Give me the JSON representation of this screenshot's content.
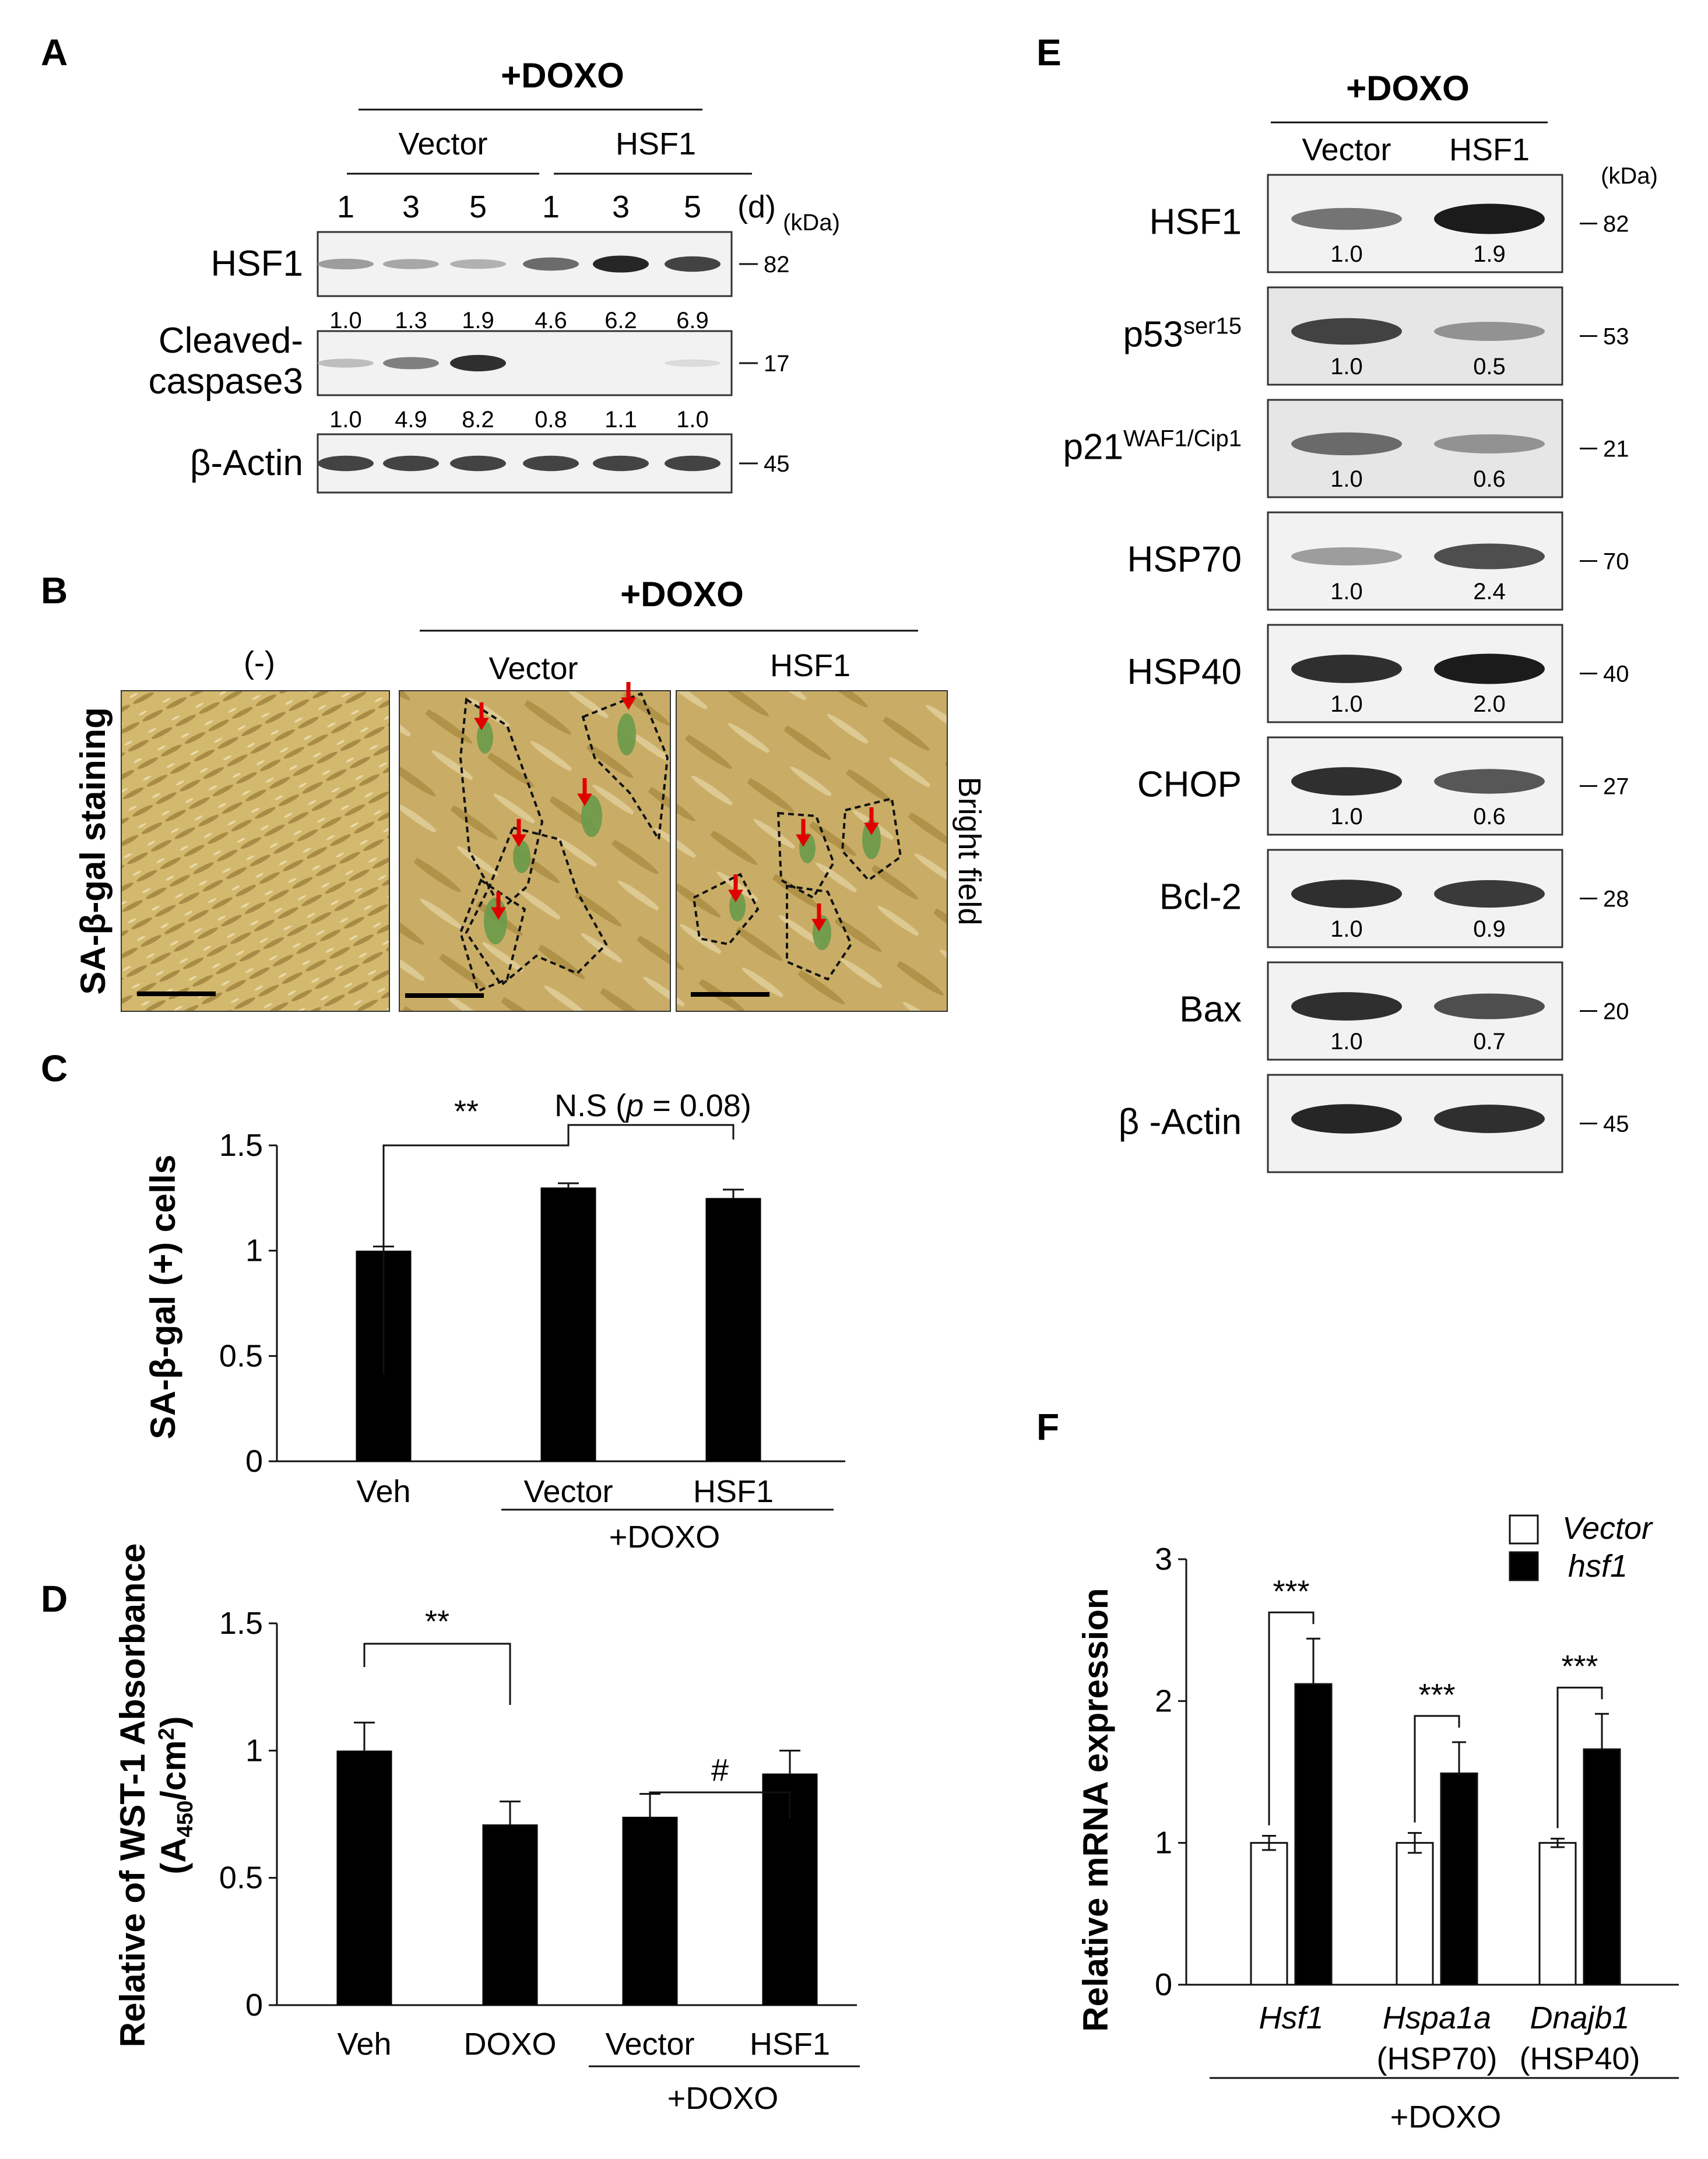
{
  "panels": {
    "A": {
      "letter": "A",
      "treatment": "+DOXO",
      "groups": [
        "Vector",
        "HSF1"
      ],
      "days": [
        "1",
        "3",
        "5",
        "1",
        "3",
        "5"
      ],
      "day_unit": "(d)",
      "kda_label": "(kDa)",
      "blots": [
        {
          "label_lines": [
            "HSF1"
          ],
          "kda": "82",
          "values": [
            "1.0",
            "1.3",
            "1.9",
            "4.6",
            "6.2",
            "6.9"
          ],
          "intensities": [
            0.35,
            0.3,
            0.25,
            0.6,
            0.95,
            0.8
          ]
        },
        {
          "label_lines": [
            "Cleaved-",
            "caspase3"
          ],
          "kda": "17",
          "values": [
            "1.0",
            "4.9",
            "8.2",
            "0.8",
            "1.1",
            "1.0"
          ],
          "intensities": [
            0.18,
            0.5,
            0.9,
            0.02,
            0.02,
            0.04
          ]
        },
        {
          "label_lines": [
            "β-Actin"
          ],
          "kda": "45",
          "values": [],
          "intensities": [
            0.8,
            0.8,
            0.8,
            0.8,
            0.8,
            0.8
          ]
        }
      ]
    },
    "B": {
      "letter": "B",
      "treatment": "+DOXO",
      "image_labels": [
        "(-)",
        "Vector",
        "HSF1"
      ],
      "side_left": "SA-β-gal  staining",
      "side_right": "Bright field"
    },
    "C": {
      "letter": "C",
      "annotation_sig": "**",
      "annotation_ns_prefix": "N.S (",
      "annotation_ns_p": "p",
      "annotation_ns_suffix": " = 0.08)",
      "group_label": "+DOXO"
    },
    "D": {
      "letter": "D",
      "annotation_sig": "**",
      "annotation_hash": "#",
      "group_label": "+DOXO"
    },
    "E": {
      "letter": "E",
      "treatment": "+DOXO",
      "lanes": [
        "Vector",
        "HSF1"
      ],
      "kda_label": "(kDa)",
      "blots": [
        {
          "label": "HSF1",
          "sup": "",
          "kda": "82",
          "values": [
            "1.0",
            "1.9"
          ],
          "intensities": [
            0.55,
            1.0
          ]
        },
        {
          "label": "p53",
          "sup": "ser15",
          "kda": "53",
          "values": [
            "1.0",
            "0.5"
          ],
          "intensities": [
            0.8,
            0.4
          ]
        },
        {
          "label": "p21",
          "sup": "WAF1/Cip1",
          "kda": "21",
          "values": [
            "1.0",
            "0.6"
          ],
          "intensities": [
            0.6,
            0.4
          ]
        },
        {
          "label": "HSP70",
          "sup": "",
          "kda": "70",
          "values": [
            "1.0",
            "2.4"
          ],
          "intensities": [
            0.35,
            0.75
          ]
        },
        {
          "label": "HSP40",
          "sup": "",
          "kda": "40",
          "values": [
            "1.0",
            "2.0"
          ],
          "intensities": [
            0.9,
            1.0
          ]
        },
        {
          "label": "CHOP",
          "sup": "",
          "kda": "27",
          "values": [
            "1.0",
            "0.6"
          ],
          "intensities": [
            0.9,
            0.7
          ]
        },
        {
          "label": "Bcl-2",
          "sup": "",
          "kda": "28",
          "values": [
            "1.0",
            "0.9"
          ],
          "intensities": [
            0.9,
            0.85
          ]
        },
        {
          "label": "Bax",
          "sup": "",
          "kda": "20",
          "values": [
            "1.0",
            "0.7"
          ],
          "intensities": [
            0.9,
            0.75
          ]
        },
        {
          "label": "β -Actin",
          "sup": "",
          "kda": "45",
          "values": [],
          "intensities": [
            0.95,
            0.9
          ]
        }
      ]
    },
    "F": {
      "letter": "F",
      "stars": "***",
      "gene_sub": [
        "",
        "(HSP70)",
        "(HSP40)"
      ],
      "group_label": "+DOXO"
    }
  },
  "chart_data": [
    {
      "panel": "C",
      "type": "bar",
      "categories": [
        "Veh",
        "Vector",
        "HSF1"
      ],
      "values": [
        1.0,
        1.3,
        1.25
      ],
      "errors": [
        0.02,
        0.02,
        0.04
      ],
      "ylabel": "SA-β-gal  (+) cells",
      "ylim": [
        0,
        1.5
      ],
      "yticks": [
        "0",
        "0.5",
        "1",
        "1.5"
      ],
      "ytick_values": [
        0,
        0.5,
        1,
        1.5
      ],
      "bar_color": "#000000"
    },
    {
      "panel": "D",
      "type": "bar",
      "categories": [
        "Veh",
        "DOXO",
        "Vector",
        "HSF1"
      ],
      "values": [
        1.0,
        0.71,
        0.74,
        0.91
      ],
      "errors": [
        0.11,
        0.09,
        0.09,
        0.09
      ],
      "ylabel_main": "Relative of WST-1 Absorbance",
      "ylabel_unit_open": "(A",
      "ylabel_unit_sub": "450",
      "ylabel_unit_mid": "/cm",
      "ylabel_unit_sup": "2",
      "ylabel_unit_close": ")",
      "ylim": [
        0,
        1.5
      ],
      "yticks": [
        "0",
        "0.5",
        "1",
        "1.5"
      ],
      "ytick_values": [
        0,
        0.5,
        1,
        1.5
      ],
      "bar_color": "#000000"
    },
    {
      "panel": "F",
      "type": "bar",
      "categories": [
        "Hsf1",
        "Hspa1a",
        "Dnajb1"
      ],
      "series": [
        {
          "name": "Vector",
          "values": [
            1.0,
            1.0,
            1.0
          ],
          "errors": [
            0.05,
            0.07,
            0.03
          ],
          "color": "#ffffff"
        },
        {
          "name": "hsf1",
          "values": [
            2.12,
            1.49,
            1.66
          ],
          "errors": [
            0.32,
            0.22,
            0.25
          ],
          "color": "#000000"
        }
      ],
      "ylabel": "Relative mRNA expression",
      "ylim": [
        0,
        3
      ],
      "yticks": [
        "0",
        "1",
        "2",
        "3"
      ],
      "ytick_values": [
        0,
        1,
        2,
        3
      ],
      "legend": "top-right"
    }
  ]
}
